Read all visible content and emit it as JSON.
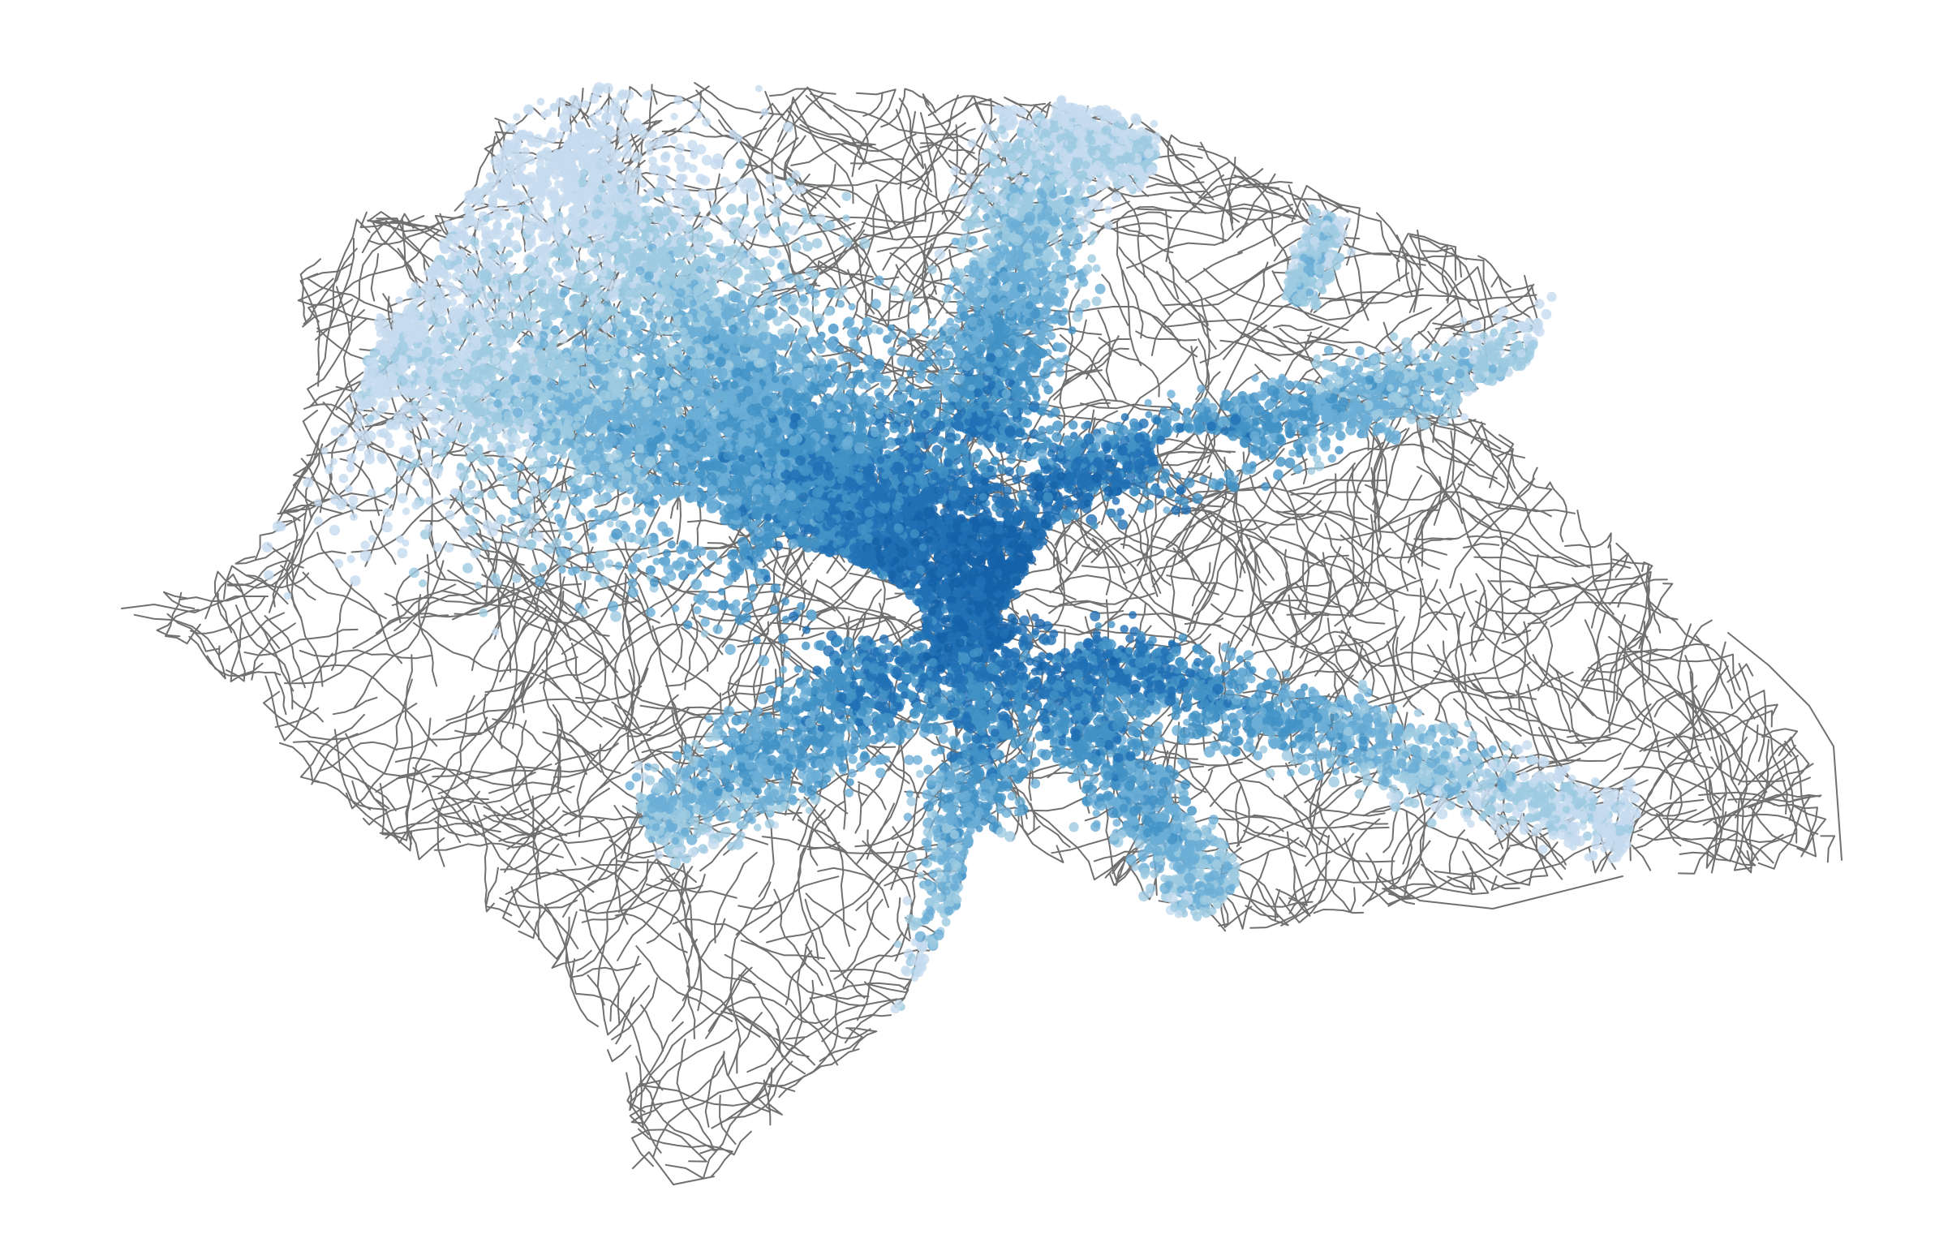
{
  "map": {
    "style": {
      "background": "#ffffff",
      "road_color": "#707070",
      "point_colors": [
        "#c6dbef",
        "#9ecae1",
        "#6baed6",
        "#4292c6",
        "#2171b5",
        "#1561a9"
      ]
    },
    "layers": [
      {
        "name": "street-network",
        "kind": "lines"
      },
      {
        "name": "observation-points",
        "kind": "points",
        "encoding": "density"
      }
    ]
  }
}
